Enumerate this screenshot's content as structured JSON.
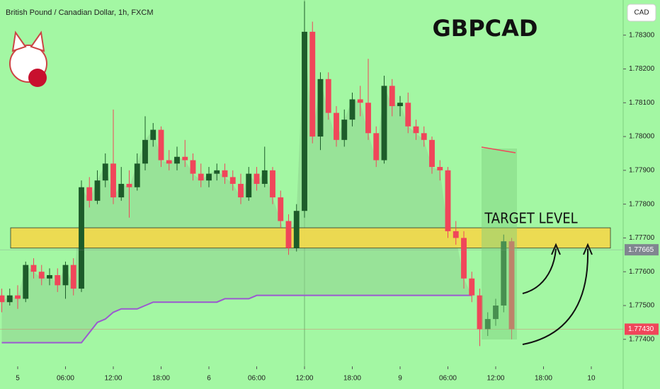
{
  "chart_data": {
    "type": "candlestick",
    "symbol": "British Pound / Canadian Dollar, 1h, FXCM",
    "title": "GBPCAD",
    "currency": "CAD",
    "annotation": "TARGET LEVEL",
    "up_color": "#1d5c2a",
    "down_color": "#f0465a",
    "x": [
      -2,
      -1,
      0,
      1,
      2,
      3,
      4,
      5,
      6,
      7,
      8,
      9,
      10,
      11,
      12,
      13,
      14,
      15,
      16,
      17,
      18,
      19,
      20,
      21,
      22,
      23,
      24,
      25,
      26,
      27,
      28,
      29,
      30,
      31,
      32,
      33,
      34,
      35,
      36,
      37,
      38,
      39,
      40,
      41,
      42,
      43,
      44,
      45,
      46,
      47,
      48,
      49,
      50,
      51,
      52,
      53,
      54,
      55,
      56,
      57,
      58,
      59,
      60,
      61,
      62
    ],
    "open": [
      1.7753,
      1.7751,
      1.7753,
      1.7752,
      1.7762,
      1.776,
      1.7758,
      1.7759,
      1.7756,
      1.7762,
      1.7755,
      1.7785,
      1.7781,
      1.7787,
      1.7792,
      1.7782,
      1.7786,
      1.7785,
      1.7792,
      1.7799,
      1.7802,
      1.7793,
      1.7792,
      1.7794,
      1.7793,
      1.7789,
      1.7787,
      1.7789,
      1.779,
      1.7788,
      1.7786,
      1.7782,
      1.7789,
      1.7786,
      1.779,
      1.7782,
      1.7775,
      1.7767,
      1.7778,
      1.7831,
      1.78,
      1.7817,
      1.7807,
      1.7799,
      1.7805,
      1.7811,
      1.781,
      1.7801,
      1.7793,
      1.7815,
      1.7809,
      1.781,
      1.7803,
      1.7801,
      1.7799,
      1.7791,
      1.779,
      1.7772,
      1.777,
      1.7758,
      1.7753,
      1.7743,
      1.7746,
      1.775,
      1.7769
    ],
    "high": [
      1.7755,
      1.7755,
      1.7756,
      1.7763,
      1.7764,
      1.7762,
      1.7761,
      1.7761,
      1.7763,
      1.7764,
      1.7787,
      1.7788,
      1.779,
      1.7795,
      1.7808,
      1.7791,
      1.779,
      1.7795,
      1.7806,
      1.7804,
      1.7803,
      1.7796,
      1.7797,
      1.7799,
      1.7795,
      1.7792,
      1.7791,
      1.7792,
      1.7792,
      1.779,
      1.7789,
      1.7791,
      1.7791,
      1.7797,
      1.7791,
      1.7784,
      1.7777,
      1.778,
      1.784,
      1.7834,
      1.7819,
      1.7819,
      1.7809,
      1.7808,
      1.7813,
      1.7815,
      1.7823,
      1.7803,
      1.7818,
      1.7817,
      1.7812,
      1.7813,
      1.7805,
      1.7803,
      1.78,
      1.7793,
      1.7791,
      1.7775,
      1.7772,
      1.776,
      1.7755,
      1.7748,
      1.7752,
      1.7771,
      1.777
    ],
    "low": [
      1.7748,
      1.775,
      1.7749,
      1.7751,
      1.7758,
      1.7756,
      1.7756,
      1.7754,
      1.7752,
      1.7753,
      1.7754,
      1.7779,
      1.778,
      1.7785,
      1.778,
      1.7781,
      1.7776,
      1.7784,
      1.779,
      1.7797,
      1.7791,
      1.779,
      1.779,
      1.7791,
      1.7787,
      1.7785,
      1.7785,
      1.7787,
      1.7786,
      1.7784,
      1.778,
      1.7781,
      1.7784,
      1.7785,
      1.778,
      1.7773,
      1.7765,
      1.7766,
      1.7776,
      1.7798,
      1.7796,
      1.7805,
      1.7797,
      1.7797,
      1.7803,
      1.7806,
      1.7799,
      1.7791,
      1.7792,
      1.7806,
      1.7806,
      1.7801,
      1.7799,
      1.7797,
      1.7789,
      1.7787,
      1.777,
      1.7768,
      1.7755,
      1.7751,
      1.7738,
      1.7741,
      1.7744,
      1.7748,
      1.774
    ],
    "close": [
      1.7751,
      1.7753,
      1.7752,
      1.7762,
      1.776,
      1.7758,
      1.7759,
      1.7756,
      1.7762,
      1.7755,
      1.7785,
      1.7781,
      1.7787,
      1.7792,
      1.7782,
      1.7786,
      1.7785,
      1.7792,
      1.7799,
      1.7802,
      1.7793,
      1.7792,
      1.7794,
      1.7793,
      1.7789,
      1.7787,
      1.7789,
      1.779,
      1.7788,
      1.7786,
      1.7782,
      1.7789,
      1.7786,
      1.779,
      1.7782,
      1.7775,
      1.7767,
      1.7778,
      1.7831,
      1.78,
      1.7817,
      1.7807,
      1.7799,
      1.7805,
      1.7811,
      1.781,
      1.7801,
      1.7793,
      1.7815,
      1.7809,
      1.781,
      1.7803,
      1.7801,
      1.7799,
      1.7791,
      1.779,
      1.7772,
      1.777,
      1.7758,
      1.7753,
      1.7743,
      1.7746,
      1.775,
      1.7769,
      1.7743
    ],
    "indicator": {
      "color": "#9b59d0",
      "values": [
        1.7739,
        1.7739,
        1.7739,
        1.7739,
        1.7739,
        1.7739,
        1.7739,
        1.7739,
        1.7739,
        1.7739,
        1.7739,
        1.7742,
        1.7745,
        1.7746,
        1.7748,
        1.7749,
        1.7749,
        1.7749,
        1.775,
        1.7751,
        1.7751,
        1.7751,
        1.7751,
        1.7751,
        1.7751,
        1.7751,
        1.7751,
        1.7751,
        1.7752,
        1.7752,
        1.7752,
        1.7752,
        1.7753,
        1.7753,
        1.7753,
        1.7753,
        1.7753,
        1.7753,
        1.7753,
        1.7753,
        1.7753,
        1.7753,
        1.7753,
        1.7753,
        1.7753,
        1.7753,
        1.7753,
        1.7753,
        1.7753,
        1.7753,
        1.7753,
        1.7753,
        1.7753,
        1.7753,
        1.7753,
        1.7753,
        1.7753,
        1.7753,
        1.7753,
        1.7753,
        null,
        null,
        null,
        null,
        null
      ]
    },
    "zone": [
      1.7767,
      1.7773
    ],
    "zone_color": "#f5d94a",
    "price_labels": [
      {
        "value": 1.77665,
        "color": "#808690"
      },
      {
        "value": 1.7743,
        "label": "1.77430",
        "color": "#f0465a"
      }
    ],
    "xlim": [
      -2.222,
      76
    ],
    "ylim": [
      1.7732,
      1.78404
    ],
    "xticks": [
      {
        "value": 0,
        "label": "5"
      },
      {
        "value": 6,
        "label": "06:00"
      },
      {
        "value": 12,
        "label": "12:00"
      },
      {
        "value": 18,
        "label": "18:00"
      },
      {
        "value": 24,
        "label": "6"
      },
      {
        "value": 30,
        "label": "06:00"
      },
      {
        "value": 36,
        "label": "12:00"
      },
      {
        "value": 42,
        "label": "18:00"
      },
      {
        "value": 48,
        "label": "9"
      },
      {
        "value": 54,
        "label": "06:00"
      },
      {
        "value": 60,
        "label": "12:00"
      },
      {
        "value": 66,
        "label": "18:00"
      },
      {
        "value": 72,
        "label": "10"
      }
    ],
    "yticks": [
      {
        "value": 1.774,
        "label": "1.77400"
      },
      {
        "value": 1.775,
        "label": "1.77500"
      },
      {
        "value": 1.776,
        "label": "1.77600"
      },
      {
        "value": 1.777,
        "label": "1.77700"
      },
      {
        "value": 1.778,
        "label": "1.77800"
      },
      {
        "value": 1.779,
        "label": "1.77900"
      },
      {
        "value": 1.78,
        "label": "1.78000"
      },
      {
        "value": 1.781,
        "label": "1.78100"
      },
      {
        "value": 1.782,
        "label": "1.78200"
      },
      {
        "value": 1.783,
        "label": "1.78300"
      }
    ]
  }
}
